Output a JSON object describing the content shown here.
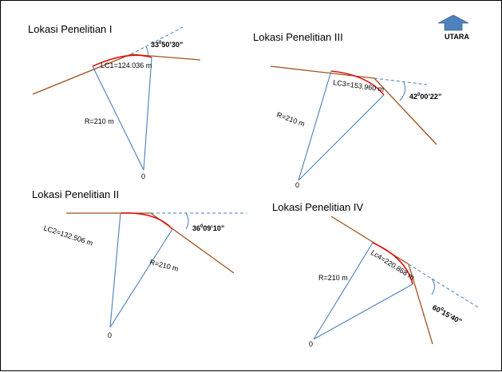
{
  "north": {
    "label": "UTARA",
    "arrow_color": "#4f81bd"
  },
  "colors": {
    "road": "#a0521b",
    "radius": "#4a7ebb",
    "curve": "#e01010"
  },
  "sites": [
    {
      "title": "Lokasi Penelitian I",
      "angle_deg": "33",
      "angle_rest": "50’30”",
      "arc_label": "LC1=124.036 m",
      "radius_label": "R=210 m",
      "center_label": "0"
    },
    {
      "title": "Lokasi Penelitian II",
      "angle_deg": "36",
      "angle_rest": "09’10”",
      "arc_label": "LC2=132.506 m",
      "radius_label": "R=210 m",
      "center_label": "0"
    },
    {
      "title": "Lokasi Penelitian III",
      "angle_deg": "42",
      "angle_rest": "00’22”",
      "arc_label": "LC3=153.960 m",
      "radius_label": "R=210 m",
      "center_label": "0"
    },
    {
      "title": "Lokasi Penelitian IV",
      "angle_deg": "60",
      "angle_rest": "15’40”",
      "arc_label": "Lc4=220.868 m",
      "radius_label": "R=210 m",
      "center_label": "0"
    }
  ]
}
